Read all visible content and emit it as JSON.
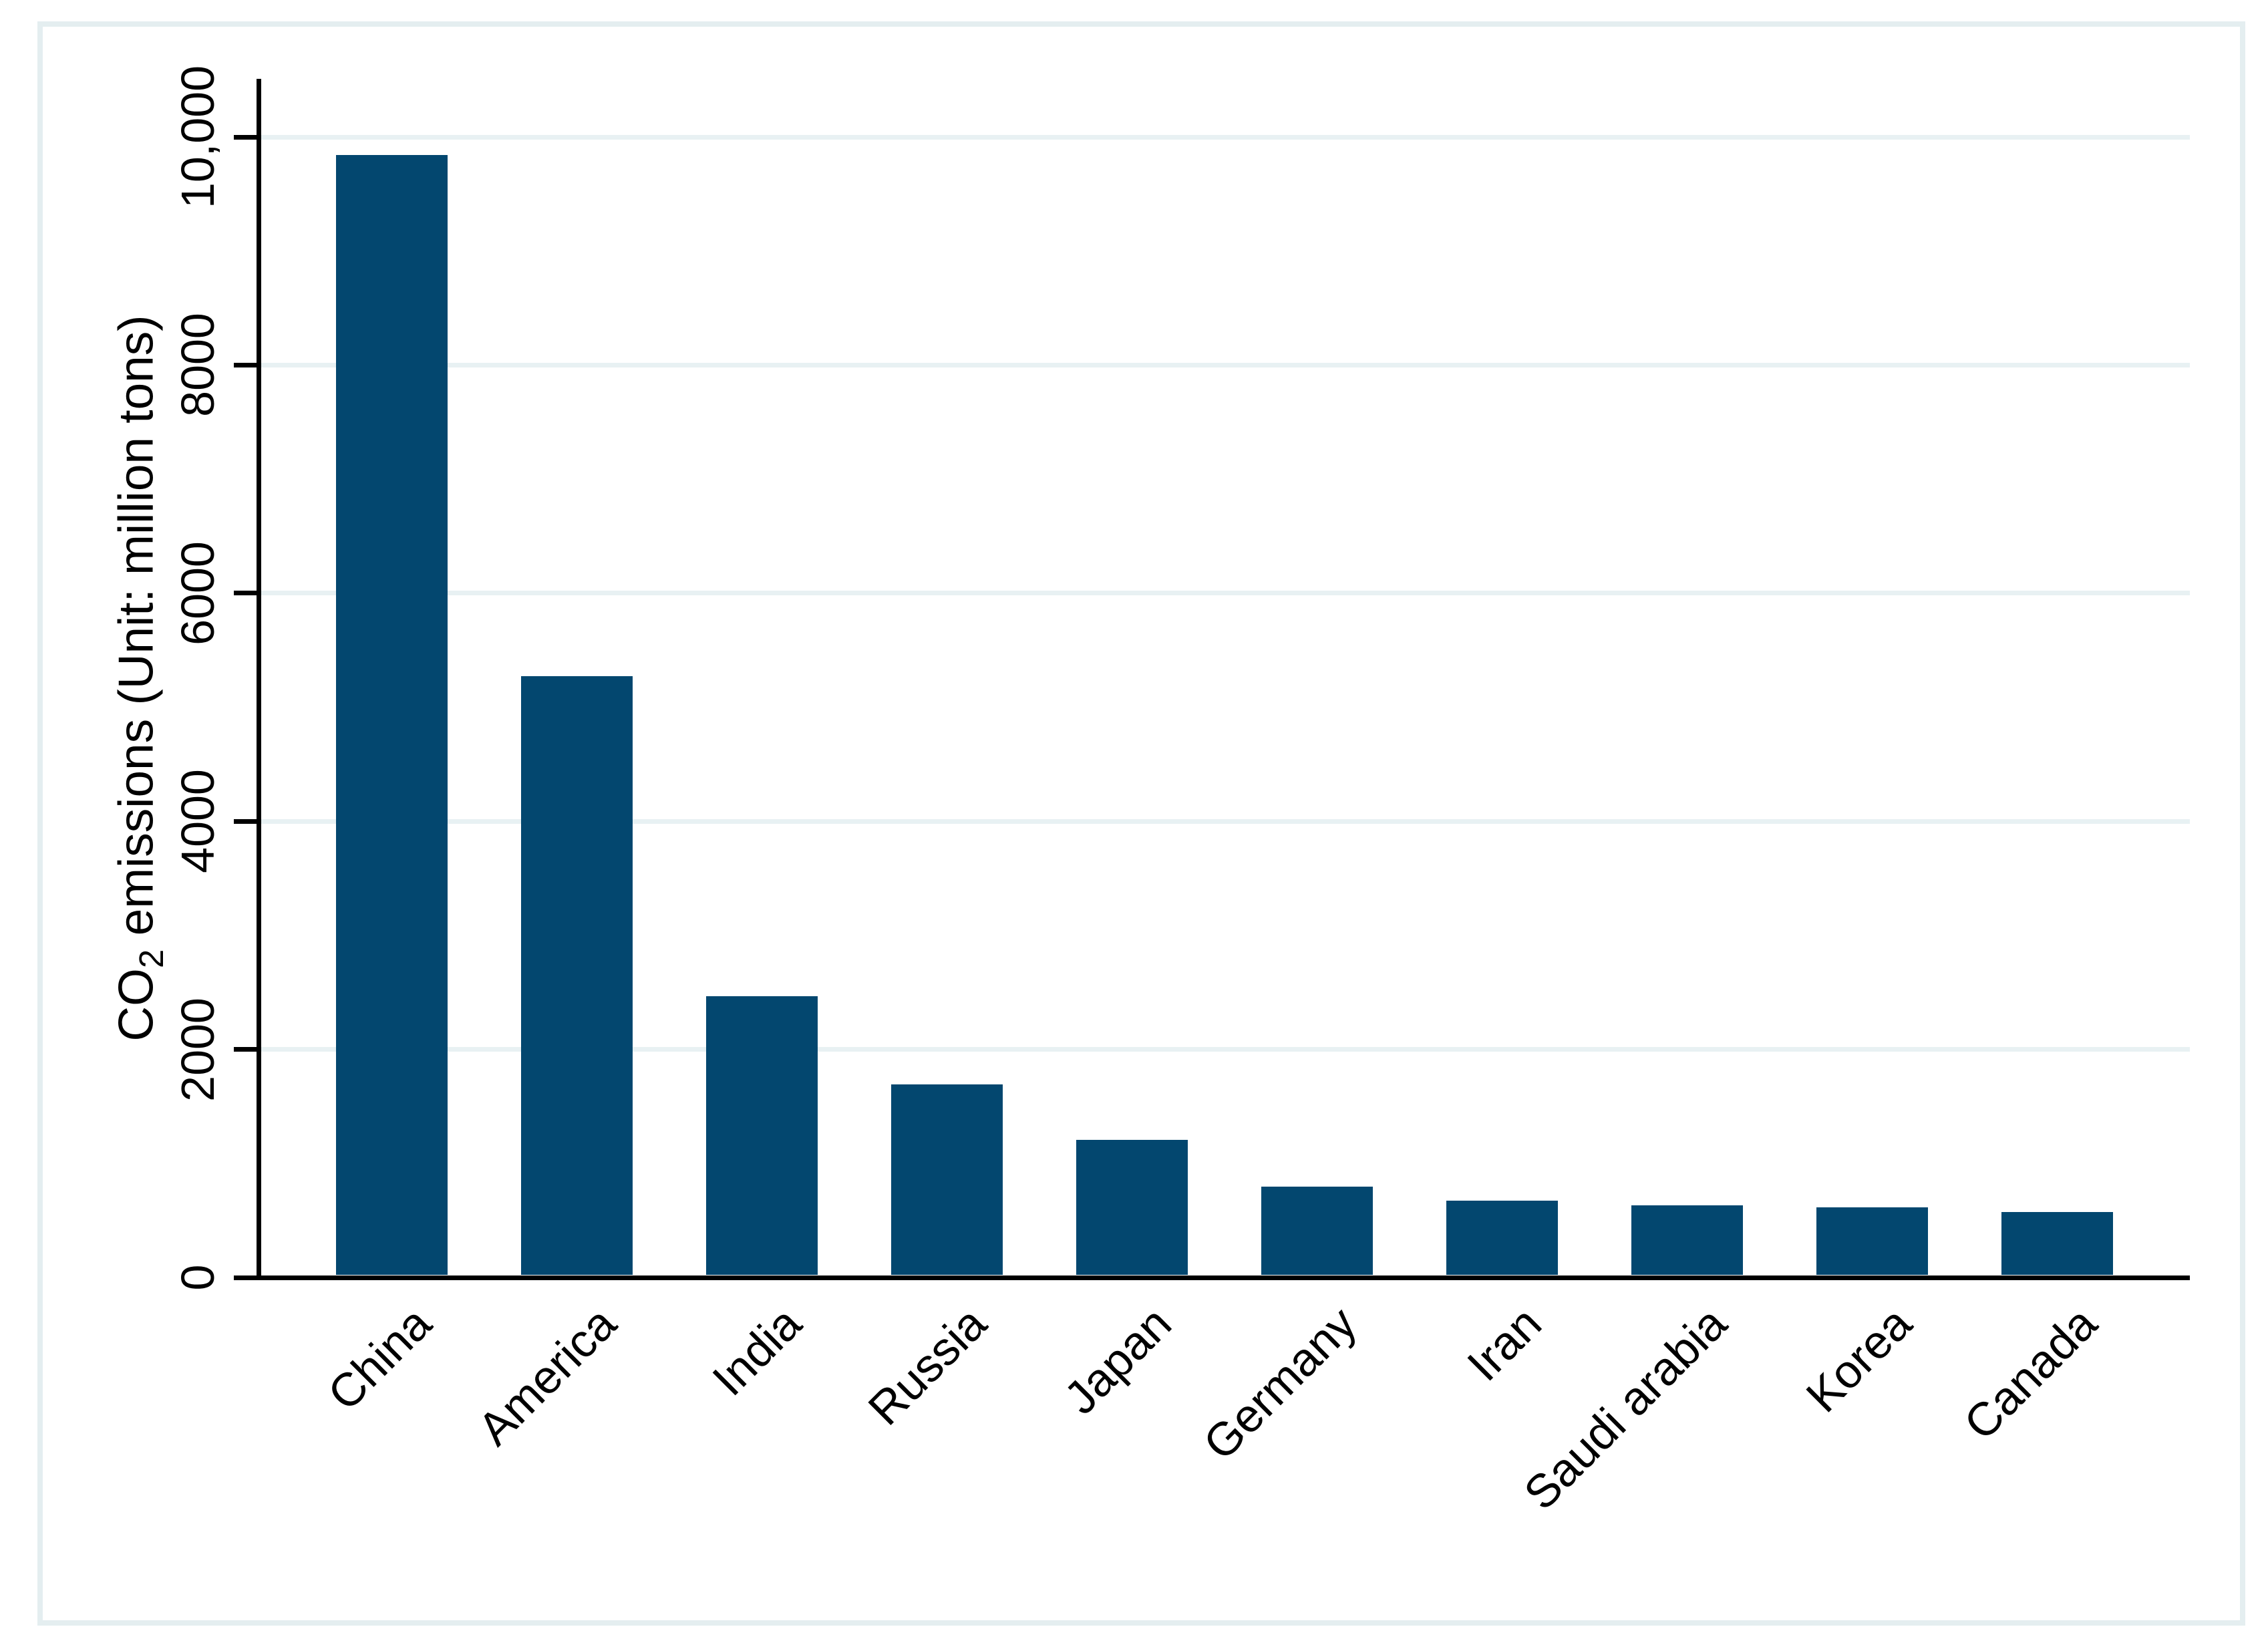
{
  "figure": {
    "background": "#ffffff",
    "frame_color": "#e4eef0",
    "plot_background": "#ffffff"
  },
  "chart_data": {
    "type": "bar",
    "title": "",
    "xlabel": "",
    "ylabel": "CO2 emissions (Unit: million tons)",
    "ylabel_parts": {
      "prefix": "CO",
      "subscript": "2",
      "suffix": " emissions (Unit: million tons)"
    },
    "categories": [
      "China",
      "America",
      "India",
      "Russia",
      "Japan",
      "Germany",
      "Iran",
      "Saudi arabia",
      "Korea",
      "Canada"
    ],
    "values": [
      9839,
      5270,
      2467,
      1693,
      1205,
      799,
      672,
      635,
      616,
      573
    ],
    "unit": "million tons",
    "ylim": [
      0,
      10500
    ],
    "yticks": [
      {
        "value": 0,
        "label": "0",
        "gridline": false
      },
      {
        "value": 2000,
        "label": "2000",
        "gridline": true
      },
      {
        "value": 4000,
        "label": "4000",
        "gridline": true
      },
      {
        "value": 6000,
        "label": "6000",
        "gridline": true
      },
      {
        "value": 8000,
        "label": "8000",
        "gridline": true
      },
      {
        "value": 10000,
        "label": "10,000",
        "gridline": true
      }
    ],
    "grid": "horizontal",
    "legend": "none",
    "x_label_angle_deg": 45,
    "y_label_angle_deg": 90,
    "bar_color": "#03476f",
    "gridline_color": "#e8f1f3",
    "axis_color": "#000000",
    "text_color": "#000000"
  }
}
